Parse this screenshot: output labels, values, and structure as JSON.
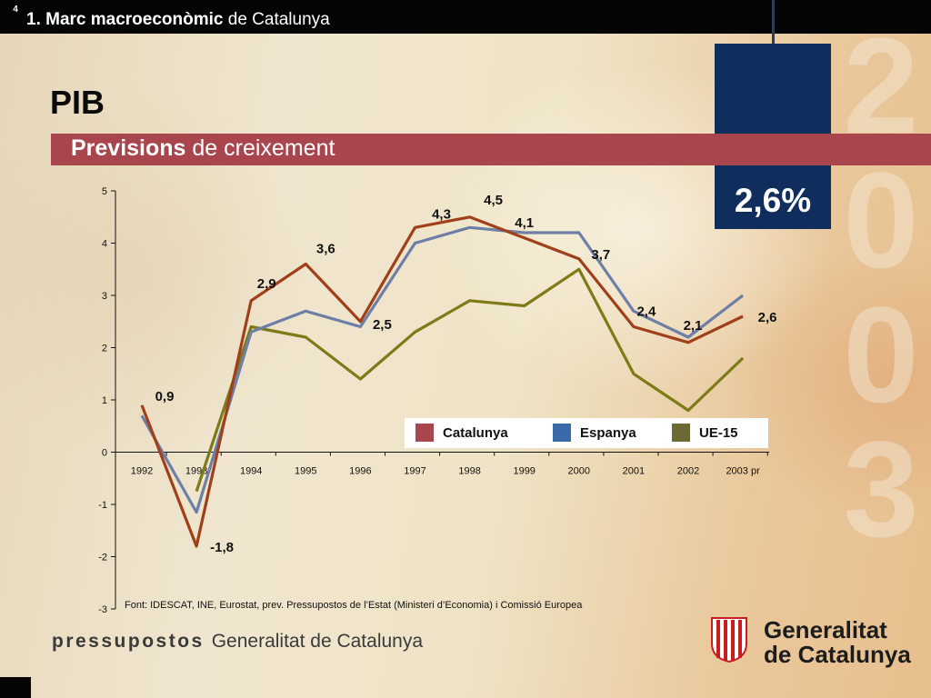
{
  "header": {
    "section_bold": "1. Marc macroeconòmic",
    "section_rest": " de Catalunya"
  },
  "title": "PIB",
  "subtitle": {
    "bold": "Previsions",
    "rest": " de creixement"
  },
  "highlight": {
    "value": "2,6%",
    "year_digits": [
      "2",
      "0",
      "0",
      "3"
    ]
  },
  "colors": {
    "catalunya": "#a0401a",
    "espanya": "#6d7fa6",
    "ue15": "#7d7a18",
    "legend_catalunya": "#a8454d",
    "legend_espanya": "#3a6aa8",
    "legend_ue15": "#6c6a34",
    "title_bar": "#a8454d",
    "highlight_box": "#0f2e5e"
  },
  "chart_data": {
    "type": "line",
    "categories": [
      "1992",
      "1993",
      "1994",
      "1995",
      "1996",
      "1997",
      "1998",
      "1999",
      "2000",
      "2001",
      "2002",
      "2003 pr"
    ],
    "ylim": [
      -3,
      5
    ],
    "yticks": [
      "5",
      "4",
      "3",
      "2",
      "1",
      "0",
      "-1",
      "-2",
      "-3"
    ],
    "ytick_values": [
      5,
      4,
      3,
      2,
      1,
      0,
      -1,
      -2,
      -3
    ],
    "series": [
      {
        "name": "Catalunya",
        "values": [
          0.9,
          -1.8,
          2.9,
          3.6,
          2.5,
          4.3,
          4.5,
          4.1,
          3.7,
          2.4,
          2.1,
          2.6
        ]
      },
      {
        "name": "Espanya",
        "values": [
          0.7,
          -1.15,
          2.3,
          2.7,
          2.4,
          4.0,
          4.3,
          4.2,
          4.2,
          2.7,
          2.2,
          3.0
        ]
      },
      {
        "name": "UE-15",
        "values": [
          null,
          -0.75,
          2.4,
          2.2,
          1.4,
          2.3,
          2.9,
          2.8,
          3.5,
          1.5,
          0.8,
          1.8
        ]
      }
    ],
    "data_labels": [
      "0,9",
      "-1,8",
      "2,9",
      "3,6",
      "2,5",
      "4,3",
      "4,5",
      "4,1",
      "3,7",
      "2,4",
      "2,1",
      "2,6"
    ],
    "grid": false,
    "legend_position": "right, inside plot area above x-axis"
  },
  "source": "Font: IDESCAT, INE, Eurostat, prev. Pressupostos de l’Estat (Ministeri d’Economia) i Comissió Europea",
  "footer": {
    "brand": "pressupostos",
    "org": "Generalitat de Catalunya",
    "logo_line1": "Generalitat",
    "logo_line2": "de Catalunya",
    "page_number": "4"
  }
}
